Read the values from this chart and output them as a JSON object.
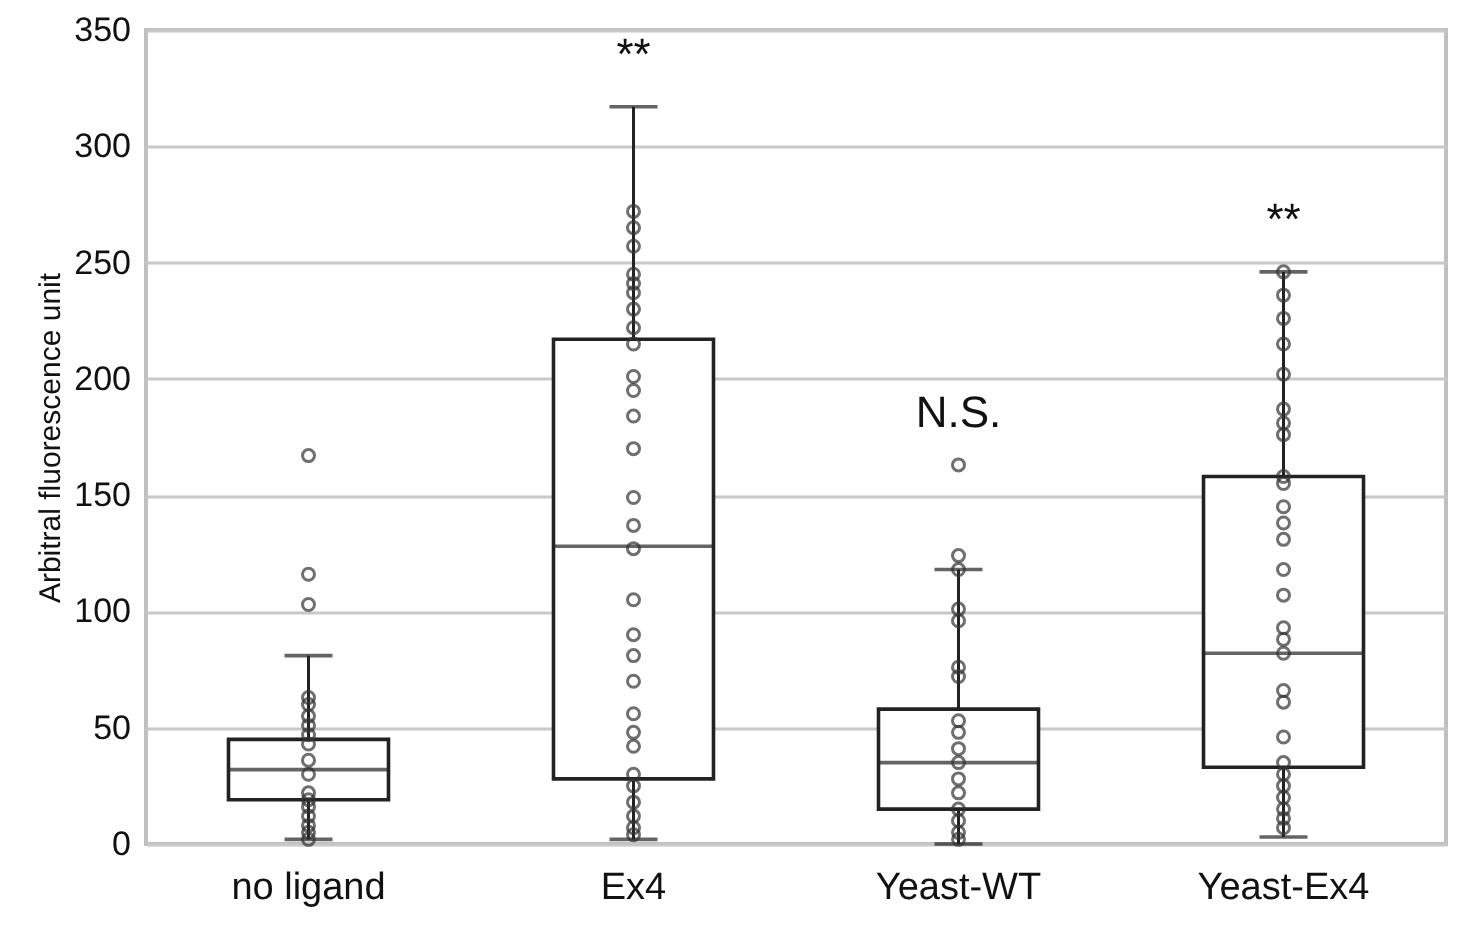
{
  "chart_data": {
    "type": "box",
    "ylabel": "Arbitral fluorescence unit",
    "categories": [
      "no ligand",
      "Ex4",
      "Yeast-WT",
      "Yeast-Ex4"
    ],
    "boxes": [
      {
        "low": 2,
        "q1": 19,
        "median": 32,
        "q3": 45,
        "high": 81
      },
      {
        "low": 2,
        "q1": 28,
        "median": 128,
        "q3": 217,
        "high": 317
      },
      {
        "low": 0,
        "q1": 15,
        "median": 35,
        "q3": 58,
        "high": 118
      },
      {
        "low": 3,
        "q1": 33,
        "median": 82,
        "q3": 158,
        "high": 246
      }
    ],
    "series": [
      {
        "type": "scatter",
        "color": "#333333",
        "x": [
          "no ligand",
          "no ligand",
          "no ligand",
          "no ligand",
          "no ligand",
          "no ligand",
          "no ligand",
          "no ligand",
          "no ligand",
          "no ligand",
          "no ligand",
          "no ligand",
          "no ligand",
          "no ligand",
          "no ligand",
          "no ligand",
          "no ligand",
          "no ligand"
        ],
        "values": [
          167,
          116,
          103,
          63,
          60,
          55,
          51,
          47,
          43,
          36,
          30,
          22,
          19,
          16,
          12,
          8,
          5,
          2
        ]
      },
      {
        "type": "scatter",
        "color": "#333333",
        "x": [
          "Ex4",
          "Ex4",
          "Ex4",
          "Ex4",
          "Ex4",
          "Ex4",
          "Ex4",
          "Ex4",
          "Ex4",
          "Ex4",
          "Ex4",
          "Ex4",
          "Ex4",
          "Ex4",
          "Ex4",
          "Ex4",
          "Ex4",
          "Ex4",
          "Ex4",
          "Ex4",
          "Ex4",
          "Ex4",
          "Ex4",
          "Ex4",
          "Ex4",
          "Ex4",
          "Ex4",
          "Ex4",
          "Ex4"
        ],
        "values": [
          272,
          265,
          257,
          245,
          241,
          237,
          230,
          222,
          215,
          201,
          195,
          184,
          170,
          149,
          137,
          127,
          105,
          90,
          81,
          70,
          56,
          48,
          42,
          30,
          25,
          18,
          12,
          7,
          4
        ]
      },
      {
        "type": "scatter",
        "color": "#333333",
        "x": [
          "Yeast-WT",
          "Yeast-WT",
          "Yeast-WT",
          "Yeast-WT",
          "Yeast-WT",
          "Yeast-WT",
          "Yeast-WT",
          "Yeast-WT",
          "Yeast-WT",
          "Yeast-WT",
          "Yeast-WT",
          "Yeast-WT",
          "Yeast-WT",
          "Yeast-WT",
          "Yeast-WT",
          "Yeast-WT",
          "Yeast-WT"
        ],
        "values": [
          163,
          124,
          118,
          101,
          96,
          76,
          72,
          53,
          48,
          41,
          35,
          28,
          22,
          15,
          10,
          5,
          2
        ]
      },
      {
        "type": "scatter",
        "color": "#333333",
        "x": [
          "Yeast-Ex4",
          "Yeast-Ex4",
          "Yeast-Ex4",
          "Yeast-Ex4",
          "Yeast-Ex4",
          "Yeast-Ex4",
          "Yeast-Ex4",
          "Yeast-Ex4",
          "Yeast-Ex4",
          "Yeast-Ex4",
          "Yeast-Ex4",
          "Yeast-Ex4",
          "Yeast-Ex4",
          "Yeast-Ex4",
          "Yeast-Ex4",
          "Yeast-Ex4",
          "Yeast-Ex4",
          "Yeast-Ex4",
          "Yeast-Ex4",
          "Yeast-Ex4",
          "Yeast-Ex4",
          "Yeast-Ex4",
          "Yeast-Ex4",
          "Yeast-Ex4",
          "Yeast-Ex4",
          "Yeast-Ex4",
          "Yeast-Ex4",
          "Yeast-Ex4"
        ],
        "values": [
          246,
          236,
          226,
          215,
          202,
          187,
          181,
          176,
          158,
          155,
          145,
          138,
          131,
          118,
          107,
          93,
          88,
          82,
          66,
          61,
          46,
          35,
          30,
          25,
          20,
          15,
          11,
          7
        ]
      }
    ],
    "annotations": [
      "**",
      "N.S.",
      "**"
    ],
    "ylim": [
      0,
      350
    ],
    "yticks": [
      0,
      50,
      100,
      150,
      200,
      250,
      300,
      350
    ],
    "grid": "y",
    "marker": "circle"
  }
}
